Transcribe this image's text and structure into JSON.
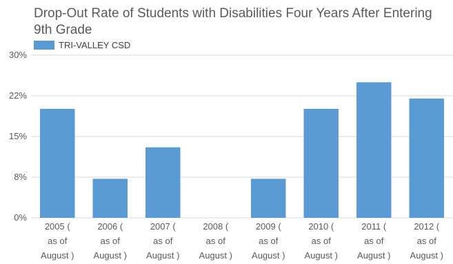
{
  "chart_data": {
    "type": "bar",
    "title": "Drop-Out Rate of Students with Disabilities Four Years After Entering 9th Grade",
    "categories": [
      [
        "2005 (",
        "as of",
        "August )"
      ],
      [
        "2006 (",
        "as of",
        "August )"
      ],
      [
        "2007 (",
        "as of",
        "August )"
      ],
      [
        "2008 (",
        "as of",
        "August )"
      ],
      [
        "2009 (",
        "as of",
        "August )"
      ],
      [
        "2010 (",
        "as of",
        "August )"
      ],
      [
        "2011 (",
        "as of",
        "August )"
      ],
      [
        "2012 (",
        "as of",
        "August )"
      ]
    ],
    "series": [
      {
        "name": "TRI-VALLEY CSD",
        "color": "#5B9BD5",
        "values": [
          20.1,
          7.2,
          13.0,
          0,
          7.2,
          20.1,
          25.0,
          22.0
        ]
      }
    ],
    "ylim": [
      0,
      30
    ],
    "yticks": [
      {
        "value": 0,
        "label": "0%"
      },
      {
        "value": 7.5,
        "label": "8%"
      },
      {
        "value": 15,
        "label": "15%"
      },
      {
        "value": 22.5,
        "label": "22%"
      },
      {
        "value": 30,
        "label": "30%"
      }
    ],
    "gridlines": true,
    "legend_position": "top-left"
  }
}
